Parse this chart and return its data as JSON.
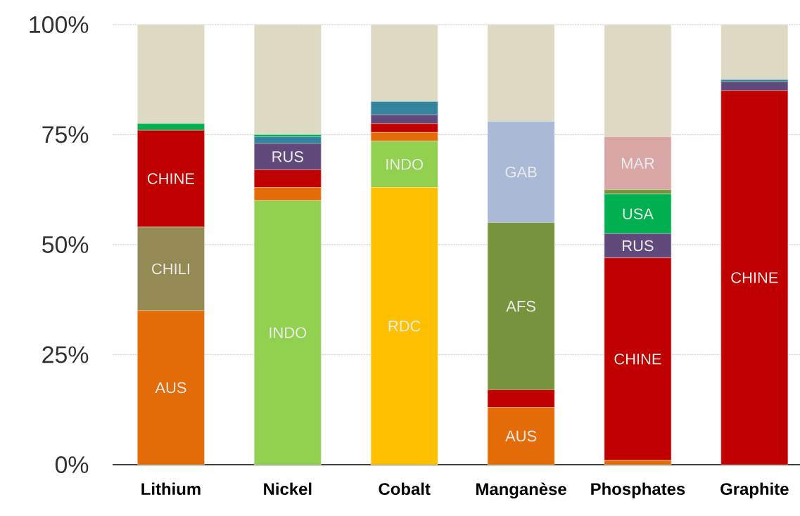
{
  "chart_data": {
    "type": "bar",
    "stacked": true,
    "categories": [
      "Lithium",
      "Nickel",
      "Cobalt",
      "Manganèse",
      "Phosphates",
      "Graphite"
    ],
    "ylim": [
      0,
      100
    ],
    "yticks": [
      {
        "value": 0,
        "label": "0%"
      },
      {
        "value": 25,
        "label": "25%"
      },
      {
        "value": 50,
        "label": "50%"
      },
      {
        "value": 75,
        "label": "75%"
      },
      {
        "value": 100,
        "label": "100%"
      }
    ],
    "grid": "y",
    "series": [
      {
        "color": "#ffc000",
        "values": [
          0,
          0,
          63,
          0,
          0,
          0
        ],
        "value_labels": [
          null,
          null,
          "RDC",
          null,
          null,
          null
        ]
      },
      {
        "color": "#92d050",
        "values": [
          0,
          60,
          10.5,
          0,
          0,
          0
        ],
        "value_labels": [
          null,
          "INDO",
          "INDO",
          null,
          null,
          null
        ]
      },
      {
        "color": "#e36c09",
        "values": [
          35,
          3,
          2,
          13,
          1,
          0
        ],
        "value_labels": [
          "AUS",
          null,
          null,
          "AUS",
          null,
          null
        ]
      },
      {
        "color": "#948a54",
        "values": [
          19,
          0,
          0,
          0,
          0,
          0
        ],
        "value_labels": [
          "CHILI",
          null,
          null,
          null,
          null,
          null
        ]
      },
      {
        "color": "#c00000",
        "values": [
          22,
          4,
          2,
          4,
          46,
          85
        ],
        "value_labels": [
          "CHINE",
          null,
          null,
          null,
          "CHINE",
          "CHINE"
        ]
      },
      {
        "color": "#604a7b",
        "values": [
          0,
          6,
          2,
          0,
          5.5,
          2
        ],
        "value_labels": [
          null,
          "RUS",
          null,
          null,
          "RUS",
          null
        ]
      },
      {
        "color": "#31849b",
        "values": [
          0,
          1.5,
          3,
          0,
          0,
          0.5
        ]
      },
      {
        "color": "#00b050",
        "values": [
          1.5,
          0.5,
          0,
          0,
          9,
          0
        ],
        "value_labels": [
          null,
          null,
          null,
          null,
          "USA",
          null
        ]
      },
      {
        "color": "#77933c",
        "values": [
          0,
          0,
          0,
          38,
          1,
          0
        ],
        "value_labels": [
          null,
          null,
          null,
          "AFS",
          null,
          null
        ]
      },
      {
        "color": "#a9b9d6",
        "values": [
          0,
          0,
          0,
          23,
          0,
          0
        ],
        "value_labels": [
          null,
          null,
          null,
          "GAB",
          null,
          null
        ]
      },
      {
        "color": "#d9a6a6",
        "values": [
          0,
          0,
          0,
          0,
          12,
          0
        ],
        "value_labels": [
          null,
          null,
          null,
          null,
          "MAR",
          null
        ]
      },
      {
        "color": "#ddd9c3",
        "values": [
          22.5,
          25,
          17.5,
          22,
          25.5,
          12.5
        ]
      }
    ]
  }
}
